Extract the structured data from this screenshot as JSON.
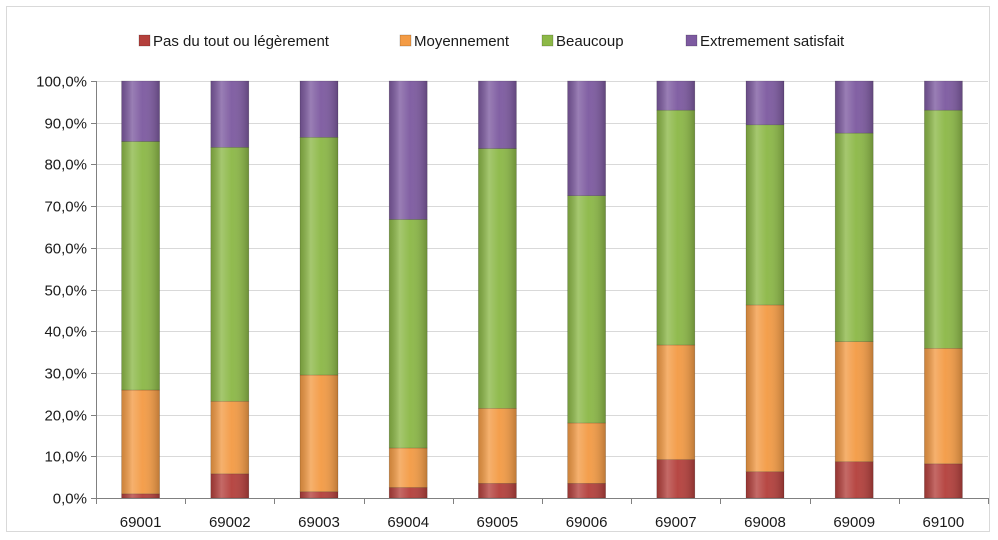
{
  "colors": {
    "pas_du_tout": "#b4403c",
    "moyennement": "#f39b45",
    "beaucoup": "#8cb847",
    "extremement": "#7d5aa0",
    "gridline": "#d9d9d9",
    "axis": "#808080"
  },
  "chart_data": {
    "type": "bar",
    "stacked": true,
    "categories": [
      "69001",
      "69002",
      "69003",
      "69004",
      "69005",
      "69006",
      "69007",
      "69008",
      "69009",
      "69100"
    ],
    "series": [
      {
        "name": "Pas du tout ou légèrement",
        "color": "#b4403c",
        "values": [
          1.0,
          5.8,
          1.5,
          2.5,
          3.5,
          3.5,
          9.2,
          6.3,
          8.7,
          8.2
        ]
      },
      {
        "name": "Moyennement",
        "color": "#f39b45",
        "values": [
          24.9,
          17.4,
          28.0,
          9.5,
          18.0,
          14.5,
          27.5,
          40.0,
          28.8,
          27.7
        ]
      },
      {
        "name": "Beaucoup",
        "color": "#8cb847",
        "values": [
          59.6,
          60.9,
          57.0,
          54.8,
          62.3,
          54.5,
          56.3,
          43.2,
          50.0,
          57.1
        ]
      },
      {
        "name": "Extremement satisfait",
        "color": "#7d5aa0",
        "values": [
          14.5,
          15.9,
          13.5,
          33.2,
          16.2,
          27.5,
          7.0,
          10.5,
          12.5,
          7.0
        ]
      }
    ],
    "ylim": [
      0,
      100
    ],
    "y_ticks": [
      "0,0%",
      "10,0%",
      "20,0%",
      "30,0%",
      "40,0%",
      "50,0%",
      "60,0%",
      "70,0%",
      "80,0%",
      "90,0%",
      "100,0%"
    ],
    "y_tick_values": [
      0,
      10,
      20,
      30,
      40,
      50,
      60,
      70,
      80,
      90,
      100
    ],
    "grid": true,
    "legend_position": "top"
  }
}
